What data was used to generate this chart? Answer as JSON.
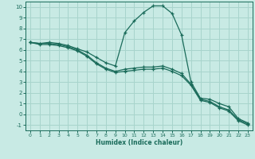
{
  "xlabel": "Humidex (Indice chaleur)",
  "bg_color": "#c8eae4",
  "grid_color": "#a8d4cc",
  "line_color": "#1a6b5a",
  "xlim": [
    -0.5,
    23.5
  ],
  "ylim": [
    -1.5,
    10.5
  ],
  "xticks": [
    0,
    1,
    2,
    3,
    4,
    5,
    6,
    7,
    8,
    9,
    10,
    11,
    12,
    13,
    14,
    15,
    16,
    17,
    18,
    19,
    20,
    21,
    22,
    23
  ],
  "yticks": [
    -1,
    0,
    1,
    2,
    3,
    4,
    5,
    6,
    7,
    8,
    9,
    10
  ],
  "line1_x": [
    0,
    1,
    2,
    3,
    4,
    5,
    6,
    7,
    8,
    9,
    10,
    11,
    12,
    13,
    14,
    15,
    16,
    17,
    18,
    19,
    20,
    21,
    22,
    23
  ],
  "line1_y": [
    6.7,
    6.6,
    6.7,
    6.6,
    6.4,
    6.1,
    5.8,
    5.3,
    4.8,
    4.5,
    7.6,
    8.7,
    9.5,
    10.1,
    10.1,
    9.4,
    7.4,
    3.0,
    1.5,
    1.4,
    1.0,
    0.7,
    -0.4,
    -0.8
  ],
  "line2_x": [
    0,
    1,
    2,
    3,
    4,
    5,
    6,
    7,
    8,
    9,
    10,
    11,
    12,
    13,
    14,
    15,
    16,
    17,
    18,
    19,
    20,
    21,
    22,
    23
  ],
  "line2_y": [
    6.7,
    6.6,
    6.6,
    6.5,
    6.3,
    6.0,
    5.5,
    4.8,
    4.3,
    4.0,
    4.2,
    4.3,
    4.4,
    4.4,
    4.5,
    4.2,
    3.8,
    2.8,
    1.4,
    1.2,
    0.7,
    0.4,
    -0.5,
    -0.9
  ],
  "line3_x": [
    0,
    1,
    2,
    3,
    4,
    5,
    6,
    7,
    8,
    9,
    10,
    11,
    12,
    13,
    14,
    15,
    16,
    17,
    18,
    19,
    20,
    21,
    22,
    23
  ],
  "line3_y": [
    6.7,
    6.5,
    6.5,
    6.4,
    6.2,
    5.9,
    5.4,
    4.7,
    4.2,
    3.9,
    4.0,
    4.1,
    4.2,
    4.2,
    4.3,
    4.0,
    3.6,
    2.7,
    1.3,
    1.1,
    0.6,
    0.3,
    -0.6,
    -1.0
  ]
}
